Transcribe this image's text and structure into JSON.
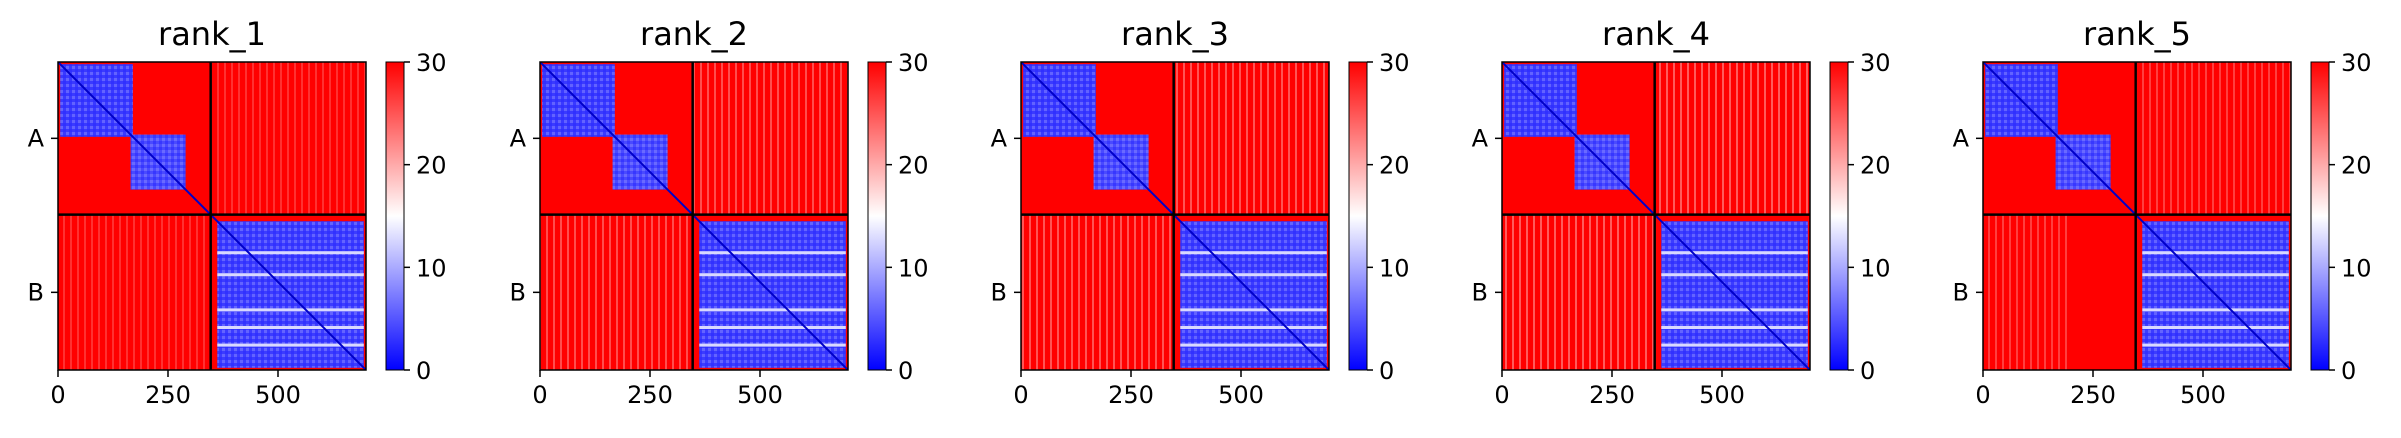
{
  "chart_data": [
    {
      "type": "heatmap",
      "title": "rank_1",
      "xticks": [
        "0",
        "250",
        "500"
      ],
      "xtick_values": [
        0,
        250,
        500
      ],
      "yticks": [
        "A",
        "B"
      ],
      "colorbar": {
        "ticks": [
          "0",
          "10",
          "20",
          "30"
        ],
        "range": [
          0,
          30
        ],
        "colormap": "bwr"
      },
      "chains": {
        "A": [
          0,
          347
        ],
        "B": [
          347,
          700
        ]
      },
      "variant": 0
    },
    {
      "type": "heatmap",
      "title": "rank_2",
      "xticks": [
        "0",
        "250",
        "500"
      ],
      "xtick_values": [
        0,
        250,
        500
      ],
      "yticks": [
        "A",
        "B"
      ],
      "colorbar": {
        "ticks": [
          "0",
          "10",
          "20",
          "30"
        ],
        "range": [
          0,
          30
        ],
        "colormap": "bwr"
      },
      "chains": {
        "A": [
          0,
          347
        ],
        "B": [
          347,
          700
        ]
      },
      "variant": 1
    },
    {
      "type": "heatmap",
      "title": "rank_3",
      "xticks": [
        "0",
        "250",
        "500"
      ],
      "xtick_values": [
        0,
        250,
        500
      ],
      "yticks": [
        "A",
        "B"
      ],
      "colorbar": {
        "ticks": [
          "0",
          "10",
          "20",
          "30"
        ],
        "range": [
          0,
          30
        ],
        "colormap": "bwr"
      },
      "chains": {
        "A": [
          0,
          347
        ],
        "B": [
          347,
          700
        ]
      },
      "variant": 2
    },
    {
      "type": "heatmap",
      "title": "rank_4",
      "xticks": [
        "0",
        "250",
        "500"
      ],
      "xtick_values": [
        0,
        250,
        500
      ],
      "yticks": [
        "A",
        "B"
      ],
      "colorbar": {
        "ticks": [
          "0",
          "10",
          "20",
          "30"
        ],
        "range": [
          0,
          30
        ],
        "colormap": "bwr"
      },
      "chains": {
        "A": [
          0,
          347
        ],
        "B": [
          347,
          700
        ]
      },
      "variant": 3
    },
    {
      "type": "heatmap",
      "title": "rank_5",
      "xticks": [
        "0",
        "250",
        "500"
      ],
      "xtick_values": [
        0,
        250,
        500
      ],
      "yticks": [
        "A",
        "B"
      ],
      "colorbar": {
        "ticks": [
          "0",
          "10",
          "20",
          "30"
        ],
        "range": [
          0,
          30
        ],
        "colormap": "bwr"
      },
      "chains": {
        "A": [
          0,
          347
        ],
        "B": [
          347,
          700
        ]
      },
      "variant": 4
    }
  ],
  "colors": {
    "low": "#0000ff",
    "mid": "#ffffff",
    "high": "#ff0000",
    "divider": "#000000"
  }
}
